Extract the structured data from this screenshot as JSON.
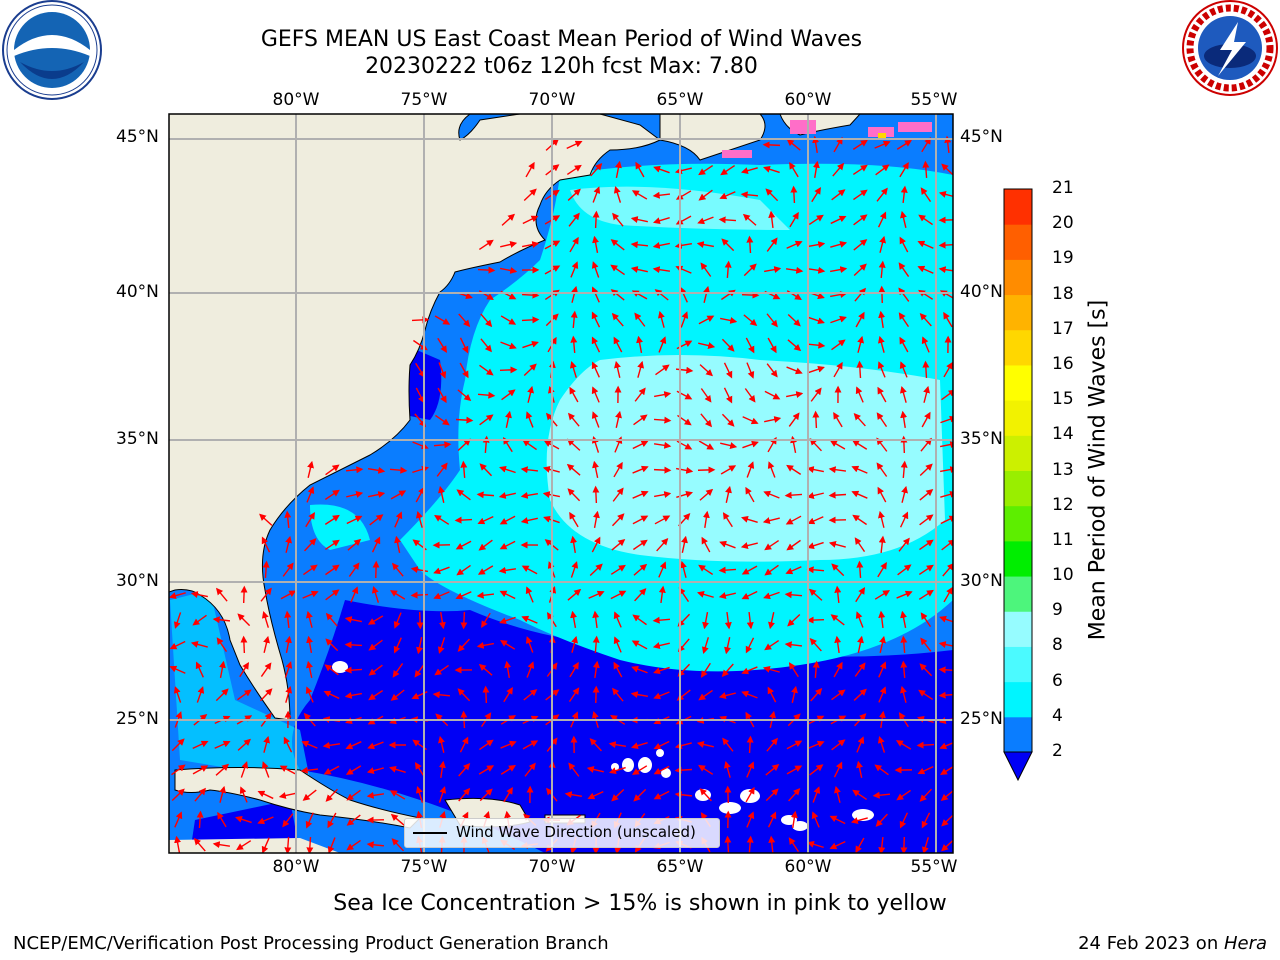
{
  "header": {
    "title_line1": "GEFS MEAN US East Coast Mean Period of Wind Waves",
    "title_line2": "20230222 t06z 120h fcst   Max: 7.80"
  },
  "map": {
    "lon_ticks": [
      "80°W",
      "75°W",
      "70°W",
      "65°W",
      "60°W",
      "55°W"
    ],
    "lat_ticks": [
      "45°N",
      "40°N",
      "35°N",
      "30°N",
      "25°N"
    ],
    "colors": {
      "land": "#efedde",
      "ocean_dark": "#0000f5",
      "ocean_mid": "#0a7dff",
      "ocean_light": "#00f5ff",
      "ocean_pale": "#96fcff",
      "arrow": "#ff0000",
      "ice": "#ff6ec8"
    },
    "legend": "Wind Wave Direction (unscaled)"
  },
  "colorbar": {
    "label": "Mean Period of Wind Waves [s]",
    "ticks": [
      "2",
      "4",
      "6",
      "8",
      "9",
      "10",
      "11",
      "12",
      "13",
      "14",
      "15",
      "16",
      "17",
      "18",
      "19",
      "20",
      "21"
    ],
    "colors": [
      "#0a7dff",
      "#00f5ff",
      "#4bfaff",
      "#96fcff",
      "#4df57c",
      "#00ee00",
      "#5dee00",
      "#99ee00",
      "#ccf000",
      "#f2f200",
      "#ffff00",
      "#ffd700",
      "#ffb300",
      "#ff8c00",
      "#ff5f00",
      "#ff3000",
      "#ff0000"
    ]
  },
  "caption": "Sea Ice Concentration > 15% is shown in pink to yellow",
  "footer": {
    "left": "NCEP/EMC/Verification Post Processing Product Generation Branch",
    "date": "24 Feb 2023 on ",
    "machine": "Hera"
  }
}
